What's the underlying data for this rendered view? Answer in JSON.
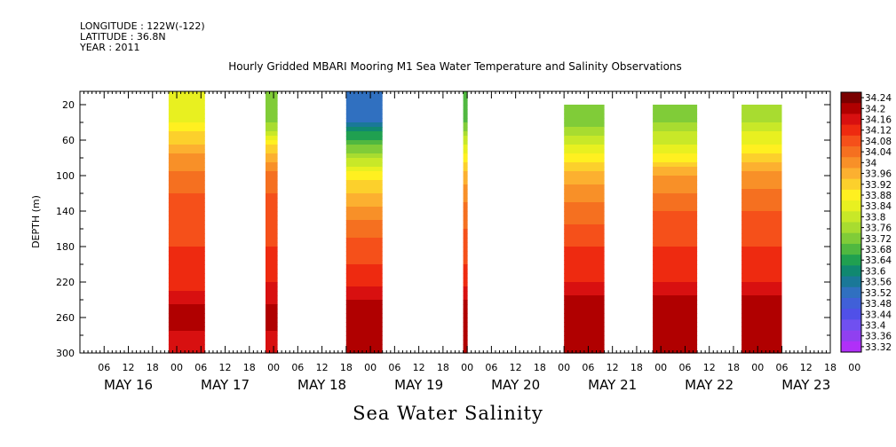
{
  "header": {
    "longitude": "LONGITUDE : 122W(-122)",
    "latitude": "LATITUDE : 36.8N",
    "year": "YEAR : 2011"
  },
  "chart_data": {
    "type": "heatmap",
    "title": "Hourly Gridded MBARI Mooring M1 Sea Water Temperature and Salinity Observations",
    "caption": "Sea Water Salinity",
    "ylabel": "DEPTH (m)",
    "xlabel": "",
    "x_unit": "hours",
    "x_range": [
      "2011-05-16T00:00",
      "2011-05-23T18:00"
    ],
    "y_range": [
      300,
      5
    ],
    "y_ticks": [
      20,
      60,
      100,
      140,
      180,
      220,
      260,
      300
    ],
    "x_hour_ticks": [
      "06",
      "12",
      "18",
      "00",
      "06",
      "12",
      "18",
      "00",
      "06",
      "12",
      "18",
      "00",
      "06",
      "12",
      "18",
      "00",
      "06",
      "12",
      "18",
      "00",
      "06",
      "12",
      "18",
      "00",
      "06",
      "12",
      "18",
      "00",
      "06",
      "12",
      "18",
      "00"
    ],
    "x_date_labels": [
      "MAY 16",
      "MAY 17",
      "MAY 18",
      "MAY 19",
      "MAY 20",
      "MAY 21",
      "MAY 22",
      "MAY 23"
    ],
    "colorbar": {
      "levels": [
        "34.24",
        "34.2",
        "34.16",
        "34.12",
        "34.08",
        "34.04",
        "34",
        "33.96",
        "33.92",
        "33.88",
        "33.84",
        "33.8",
        "33.76",
        "33.72",
        "33.68",
        "33.64",
        "33.6",
        "33.56",
        "33.52",
        "33.48",
        "33.44",
        "33.4",
        "33.36",
        "33.32"
      ],
      "colors": [
        "#7a0000",
        "#b00000",
        "#d81010",
        "#ee2a10",
        "#f5501a",
        "#f57020",
        "#f89028",
        "#fcb030",
        "#fcd02c",
        "#fff020",
        "#e8f020",
        "#c8e828",
        "#a8dc30",
        "#80cc38",
        "#50b840",
        "#20a050",
        "#108870",
        "#1a7898",
        "#3070c0",
        "#4060d8",
        "#5050e8",
        "#7050f0",
        "#9040f0",
        "#b030f8"
      ]
    },
    "data_columns": [
      {
        "start": "2011-05-16T22:00",
        "end": "2011-05-17T07:00",
        "top_depth": 20,
        "profile": [
          33.84,
          33.96,
          34.04,
          34.08,
          34.1,
          34.12,
          34.2,
          34.16
        ]
      },
      {
        "start": "2011-05-17T22:00",
        "end": "2011-05-18T01:00",
        "top_depth": 20,
        "profile": [
          33.7,
          33.92,
          34.04,
          34.08,
          34.1,
          34.14,
          34.2,
          34.16
        ]
      },
      {
        "start": "2011-05-18T18:00",
        "end": "2011-05-19T03:00",
        "top_depth": 20,
        "profile": [
          33.52,
          33.72,
          33.88,
          34.0,
          34.08,
          34.12,
          34.22,
          34.18
        ]
      },
      {
        "start": "2011-05-19T23:00",
        "end": "2011-05-20T00:00",
        "top_depth": 20,
        "profile": [
          33.68,
          33.84,
          33.96,
          34.04,
          34.08,
          34.12,
          34.22,
          34.18
        ]
      },
      {
        "start": "2011-05-21T00:00",
        "end": "2011-05-21T10:00",
        "top_depth": 35,
        "profile": [
          33.7,
          33.84,
          33.96,
          34.04,
          34.1,
          34.14,
          34.22,
          34.18
        ]
      },
      {
        "start": "2011-05-21T22:00",
        "end": "2011-05-22T09:00",
        "top_depth": 35,
        "profile": [
          33.72,
          33.84,
          33.98,
          34.06,
          34.1,
          34.14,
          34.22,
          34.18
        ]
      },
      {
        "start": "2011-05-22T20:00",
        "end": "2011-05-23T06:00",
        "top_depth": 35,
        "profile": [
          33.76,
          33.88,
          34.0,
          34.06,
          34.1,
          34.14,
          34.22,
          34.18
        ]
      }
    ],
    "profile_depths": [
      35,
      70,
      100,
      140,
      180,
      220,
      255,
      290
    ]
  }
}
